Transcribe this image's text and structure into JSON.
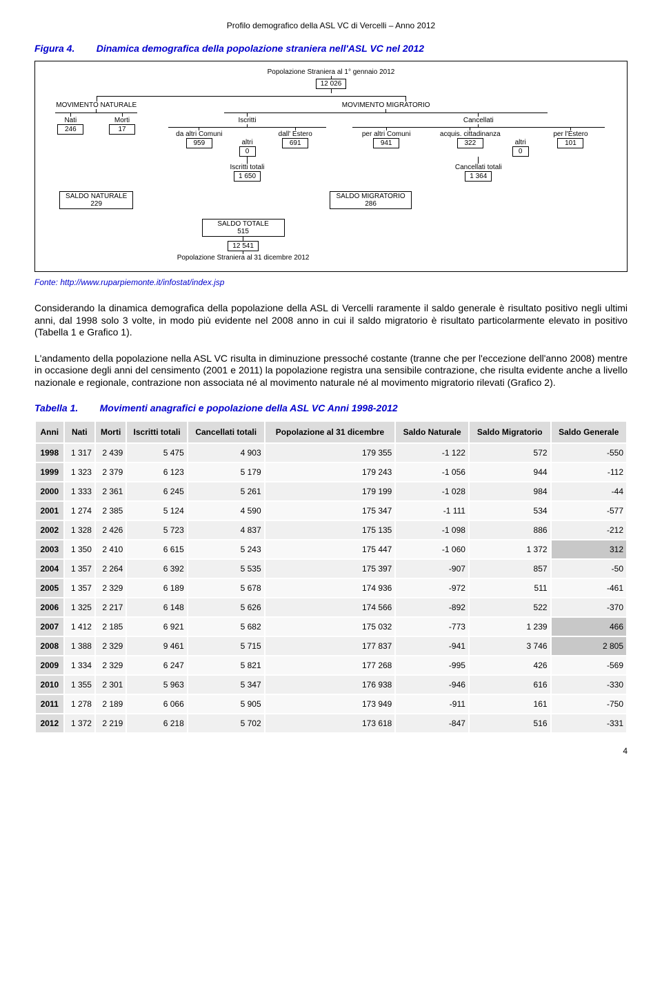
{
  "header": "Profilo demografico della ASL VC di Vercelli – Anno 2012",
  "figure": {
    "num": "Figura 4.",
    "title": "Dinamica demografica della popolazione straniera nell'ASL VC nel 2012",
    "pop_start_label": "Popolazione Straniera al 1° gennaio 2012",
    "pop_start_val": "12 026",
    "mov_nat": "MOVIMENTO NATURALE",
    "mov_mig": "MOVIMENTO MIGRATORIO",
    "nati_l": "Nati",
    "nati_v": "246",
    "morti_l": "Morti",
    "morti_v": "17",
    "iscritti_l": "Iscritti",
    "da_comuni_l": "da altri Comuni",
    "da_comuni_v": "959",
    "altri_l": "altri",
    "altri_v": "0",
    "estero_l": "dall' Estero",
    "estero_v": "691",
    "cancellati_l": "Cancellati",
    "per_comuni_l": "per altri Comuni",
    "per_comuni_v": "941",
    "acq_l": "acquis. cittadinanza",
    "acq_v": "322",
    "altri2_v": "0",
    "per_estero_l": "per l'Estero",
    "per_estero_v": "101",
    "iscritti_tot_l": "Iscritti totali",
    "iscritti_tot_v": "1 650",
    "canc_tot_l": "Cancellati totali",
    "canc_tot_v": "1 364",
    "saldo_nat_l": "SALDO NATURALE",
    "saldo_nat_v": "229",
    "saldo_mig_l": "SALDO MIGRATORIO",
    "saldo_mig_v": "286",
    "saldo_tot_l": "SALDO TOTALE",
    "saldo_tot_v": "515",
    "pop_end_v": "12 541",
    "pop_end_l": "Popolazione Straniera al 31 dicembre 2012"
  },
  "source": "Fonte: http://www.ruparpiemonte.it/infostat/index.jsp",
  "para1": "Considerando la dinamica demografica della popolazione della ASL di Vercelli raramente il saldo generale è risultato positivo negli ultimi anni, dal 1998 solo 3 volte, in modo più evidente nel 2008 anno in cui il saldo migratorio è risultato particolarmente elevato in positivo (Tabella 1 e Grafico 1).",
  "para2": "L'andamento della popolazione nella ASL VC risulta in diminuzione pressoché costante (tranne che per l'eccezione dell'anno 2008) mentre in occasione degli anni del censimento (2001 e 2011) la popolazione registra una sensibile contrazione, che risulta evidente anche a livello nazionale e regionale, contrazione non associata né al movimento naturale né al movimento migratorio rilevati (Grafico 2).",
  "table": {
    "num": "Tabella 1.",
    "title": "Movimenti anagrafici e popolazione della ASL VC Anni 1998-2012",
    "headers": [
      "Anni",
      "Nati",
      "Morti",
      "Iscritti totali",
      "Cancellati totali",
      "Popolazione al 31 dicembre",
      "Saldo Naturale",
      "Saldo Migratorio",
      "Saldo Generale"
    ],
    "rows": [
      [
        "1998",
        "1 317",
        "2 439",
        "5 475",
        "4 903",
        "179 355",
        "-1 122",
        "572",
        "-550"
      ],
      [
        "1999",
        "1 323",
        "2 379",
        "6 123",
        "5 179",
        "179 243",
        "-1 056",
        "944",
        "-112"
      ],
      [
        "2000",
        "1 333",
        "2 361",
        "6 245",
        "5 261",
        "179 199",
        "-1 028",
        "984",
        "-44"
      ],
      [
        "2001",
        "1 274",
        "2 385",
        "5 124",
        "4 590",
        "175 347",
        "-1 111",
        "534",
        "-577"
      ],
      [
        "2002",
        "1 328",
        "2 426",
        "5 723",
        "4 837",
        "175 135",
        "-1 098",
        "886",
        "-212"
      ],
      [
        "2003",
        "1 350",
        "2 410",
        "6 615",
        "5 243",
        "175 447",
        "-1 060",
        "1 372",
        "312"
      ],
      [
        "2004",
        "1 357",
        "2 264",
        "6 392",
        "5 535",
        "175 397",
        "-907",
        "857",
        "-50"
      ],
      [
        "2005",
        "1 357",
        "2 329",
        "6 189",
        "5 678",
        "174 936",
        "-972",
        "511",
        "-461"
      ],
      [
        "2006",
        "1 325",
        "2 217",
        "6 148",
        "5 626",
        "174 566",
        "-892",
        "522",
        "-370"
      ],
      [
        "2007",
        "1 412",
        "2 185",
        "6 921",
        "5 682",
        "175 032",
        "-773",
        "1 239",
        "466"
      ],
      [
        "2008",
        "1 388",
        "2 329",
        "9 461",
        "5 715",
        "177 837",
        "-941",
        "3 746",
        "2 805"
      ],
      [
        "2009",
        "1 334",
        "2 329",
        "6 247",
        "5 821",
        "177 268",
        "-995",
        "426",
        "-569"
      ],
      [
        "2010",
        "1 355",
        "2 301",
        "5 963",
        "5 347",
        "176 938",
        "-946",
        "616",
        "-330"
      ],
      [
        "2011",
        "1 278",
        "2 189",
        "6 066",
        "5 905",
        "173 949",
        "-911",
        "161",
        "-750"
      ],
      [
        "2012",
        "1 372",
        "2 219",
        "6 218",
        "5 702",
        "173 618",
        "-847",
        "516",
        "-331"
      ]
    ],
    "highlight_cells": [
      [
        5,
        8
      ],
      [
        9,
        8
      ],
      [
        10,
        8
      ]
    ]
  },
  "page_num": "4",
  "colors": {
    "accent": "#0000cc",
    "header_bg": "#dcdcdc"
  }
}
